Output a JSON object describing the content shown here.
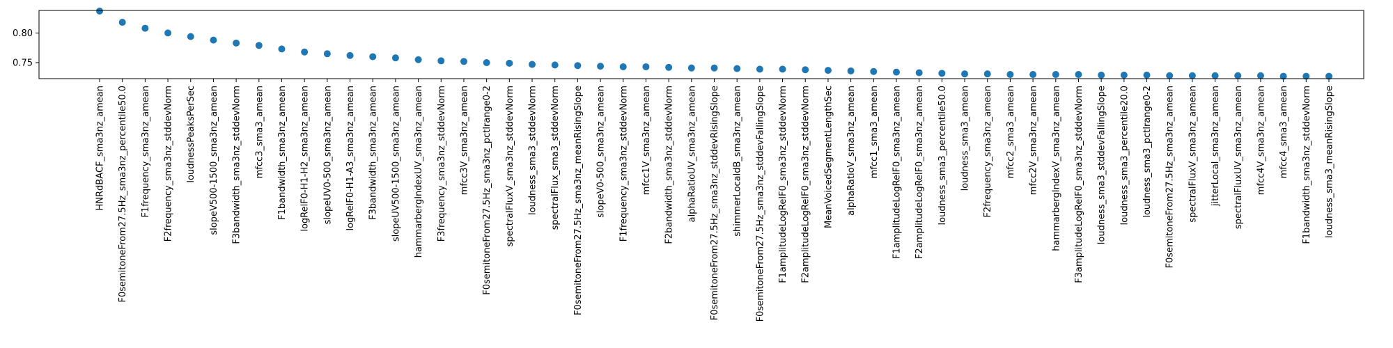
{
  "chart_data": {
    "type": "scatter",
    "title": "",
    "xlabel": "",
    "ylabel": "",
    "grid": false,
    "ylim": [
      0.723,
      0.838
    ],
    "yticks": [
      0.75,
      0.8
    ],
    "ytick_labels": [
      "0.75",
      "0.80"
    ],
    "marker_color": "#1f77b4",
    "categories": [
      "HNRdBACF_sma3nz_amean",
      "F0semitoneFrom27.5Hz_sma3nz_percentile50.0",
      "F1frequency_sma3nz_amean",
      "F2frequency_sma3nz_stddevNorm",
      "loudnessPeaksPerSec",
      "slopeV500-1500_sma3nz_amean",
      "F3bandwidth_sma3nz_stddevNorm",
      "mfcc3_sma3_amean",
      "F1bandwidth_sma3nz_amean",
      "logRelF0-H1-H2_sma3nz_amean",
      "slopeUV0-500_sma3nz_amean",
      "logRelF0-H1-A3_sma3nz_amean",
      "F3bandwidth_sma3nz_amean",
      "slopeUV500-1500_sma3nz_amean",
      "hammarbergIndexUV_sma3nz_amean",
      "F3frequency_sma3nz_stddevNorm",
      "mfcc3V_sma3nz_amean",
      "F0semitoneFrom27.5Hz_sma3nz_pctlrange0-2",
      "spectralFluxV_sma3nz_stddevNorm",
      "loudness_sma3_stddevNorm",
      "spectralFlux_sma3_stddevNorm",
      "F0semitoneFrom27.5Hz_sma3nz_meanRisingSlope",
      "slopeV0-500_sma3nz_amean",
      "F1frequency_sma3nz_stddevNorm",
      "mfcc1V_sma3nz_amean",
      "F2bandwidth_sma3nz_stddevNorm",
      "alphaRatioUV_sma3nz_amean",
      "F0semitoneFrom27.5Hz_sma3nz_stddevRisingSlope",
      "shimmerLocaldB_sma3nz_amean",
      "F0semitoneFrom27.5Hz_sma3nz_stddevFallingSlope",
      "F1amplitudeLogRelF0_sma3nz_stddevNorm",
      "F2amplitudeLogRelF0_sma3nz_stddevNorm",
      "MeanVoicedSegmentLengthSec",
      "alphaRatioV_sma3nz_amean",
      "mfcc1_sma3_amean",
      "F1amplitudeLogRelF0_sma3nz_amean",
      "F2amplitudeLogRelF0_sma3nz_amean",
      "loudness_sma3_percentile50.0",
      "loudness_sma3_amean",
      "F2frequency_sma3nz_amean",
      "mfcc2_sma3_amean",
      "mfcc2V_sma3nz_amean",
      "hammarbergIndexV_sma3nz_amean",
      "F3amplitudeLogRelF0_sma3nz_stddevNorm",
      "loudness_sma3_stddevFallingSlope",
      "loudness_sma3_percentile20.0",
      "loudness_sma3_pctlrange0-2",
      "F0semitoneFrom27.5Hz_sma3nz_amean",
      "spectralFluxV_sma3nz_amean",
      "jitterLocal_sma3nz_amean",
      "spectralFluxUV_sma3nz_amean",
      "mfcc4V_sma3nz_amean",
      "mfcc4_sma3_amean",
      "F1bandwidth_sma3nz_stddevNorm",
      "loudness_sma3_meanRisingSlope"
    ],
    "values": [
      0.837,
      0.818,
      0.808,
      0.8,
      0.794,
      0.788,
      0.783,
      0.779,
      0.773,
      0.768,
      0.765,
      0.762,
      0.76,
      0.758,
      0.755,
      0.753,
      0.752,
      0.75,
      0.749,
      0.747,
      0.746,
      0.745,
      0.744,
      0.743,
      0.743,
      0.742,
      0.741,
      0.741,
      0.74,
      0.739,
      0.739,
      0.738,
      0.737,
      0.736,
      0.735,
      0.734,
      0.733,
      0.732,
      0.731,
      0.731,
      0.73,
      0.73,
      0.73,
      0.73,
      0.729,
      0.729,
      0.729,
      0.728,
      0.728,
      0.728,
      0.728,
      0.728,
      0.727,
      0.727,
      0.727
    ]
  }
}
